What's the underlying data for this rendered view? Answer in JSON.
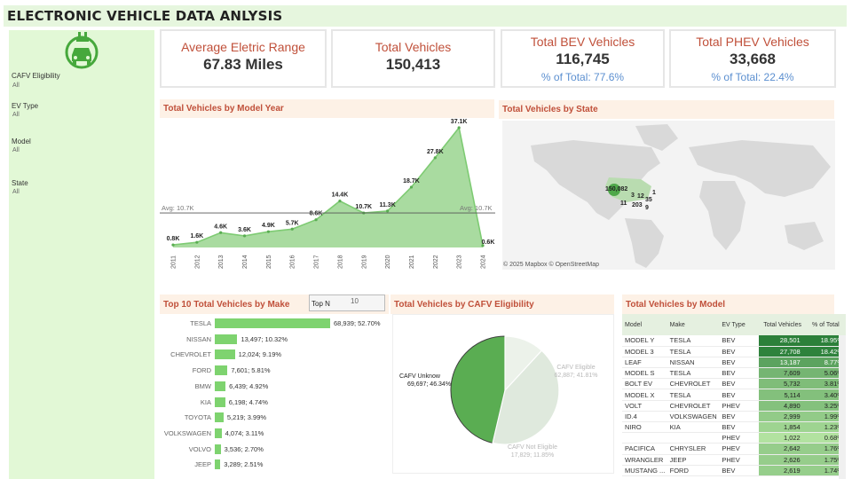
{
  "header": {
    "title": "ELECTRONIC VEHICLE DATA ANLYSIS"
  },
  "sidebar": {
    "icon": "ev-charger-car-icon",
    "filters": [
      {
        "label": "CAFV Eligibility",
        "value": "All"
      },
      {
        "label": "EV Type",
        "value": "All"
      },
      {
        "label": "Model",
        "value": "All"
      },
      {
        "label": "State",
        "value": "All"
      }
    ]
  },
  "kpis": {
    "avg_range": {
      "title": "Average Eletric Range",
      "value": "67.83 Miles"
    },
    "total": {
      "title": "Total Vehicles",
      "value": "150,413"
    },
    "bev": {
      "title": "Total BEV Vehicles",
      "value": "116,745",
      "pct": "% of Total: 77.6%"
    },
    "phev": {
      "title": "Total PHEV Vehicles",
      "value": "33,668",
      "pct": "% of Total: 22.4%"
    }
  },
  "year_chart": {
    "panel_title": "Total Vehicles by Model Year",
    "avg_label_left": "Avg: 10.7K",
    "avg_label_right": "Avg: 10.7K",
    "chart_data": {
      "type": "area",
      "x": [
        "2011",
        "2012",
        "2013",
        "2014",
        "2015",
        "2016",
        "2017",
        "2018",
        "2019",
        "2020",
        "2021",
        "2022",
        "2023",
        "2024"
      ],
      "values": [
        0.8,
        1.6,
        4.6,
        3.6,
        4.9,
        5.7,
        8.6,
        14.4,
        10.7,
        11.3,
        18.7,
        27.8,
        37.1,
        0.6
      ],
      "labels": [
        "0.8K",
        "1.6K",
        "4.6K",
        "3.6K",
        "4.9K",
        "5.7K",
        "8.6K",
        "14.4K",
        "10.7K",
        "11.3K",
        "18.7K",
        "27.8K",
        "37.1K",
        "0.6K"
      ],
      "average": 10.7,
      "color": "#7ecb73"
    }
  },
  "state_map": {
    "panel_title": "Total Vehicles by State",
    "credit": "© 2025 Mapbox © OpenStreetMap",
    "labels": [
      "150,082",
      "3",
      "12",
      "35",
      "1",
      "11",
      "203",
      "9"
    ]
  },
  "make_chart": {
    "panel_title": "Top 10 Total Vehicles by Make",
    "topn_label": "Top N",
    "topn_value": "10",
    "chart_data": {
      "type": "bar",
      "categories": [
        "TESLA",
        "NISSAN",
        "CHEVROLET",
        "FORD",
        "BMW",
        "KIA",
        "TOYOTA",
        "VOLKSWAGEN",
        "VOLVO",
        "JEEP"
      ],
      "values": [
        68939,
        13497,
        12024,
        7601,
        6439,
        6198,
        5219,
        4074,
        3536,
        3289
      ],
      "labels": [
        "68,939; 52.70%",
        "13,497; 10.32%",
        "12,024; 9.19%",
        "7,601; 5.81%",
        "6,439; 4.92%",
        "6,198; 4.74%",
        "5,219; 3.99%",
        "4,074; 3.11%",
        "3,536; 2.70%",
        "3,289; 2.51%"
      ],
      "color": "#7ed36f"
    }
  },
  "cafv_chart": {
    "panel_title": "Total Vehicles by  CAFV Eligibility",
    "chart_data": {
      "type": "pie",
      "slices": [
        {
          "name": "CAFV Unknow",
          "value": 69697,
          "label": "69,697; 46.34%",
          "color": "#5aad52"
        },
        {
          "name": "CAFV Eligible",
          "value": 62887,
          "label": "62,887; 41.81%",
          "color": "#dfe9dd"
        },
        {
          "name": "CAFV Not Eligible",
          "value": 17829,
          "label": "17,829; 11.85%",
          "color": "#ecf2ea"
        }
      ]
    }
  },
  "model_table": {
    "panel_title": "Total Vehicles by Model",
    "headers": [
      "Model",
      "Make",
      "EV Type",
      "Total Vehicles",
      "% of Total"
    ],
    "rows": [
      [
        "MODEL Y",
        "TESLA",
        "BEV",
        "28,501",
        "18.95%"
      ],
      [
        "MODEL 3",
        "TESLA",
        "BEV",
        "27,708",
        "18.42%"
      ],
      [
        "LEAF",
        "NISSAN",
        "BEV",
        "13,187",
        "8.77%"
      ],
      [
        "MODEL S",
        "TESLA",
        "BEV",
        "7,609",
        "5.06%"
      ],
      [
        "BOLT EV",
        "CHEVROLET",
        "BEV",
        "5,732",
        "3.81%"
      ],
      [
        "MODEL X",
        "TESLA",
        "BEV",
        "5,114",
        "3.40%"
      ],
      [
        "VOLT",
        "CHEVROLET",
        "PHEV",
        "4,890",
        "3.25%"
      ],
      [
        "ID.4",
        "VOLKSWAGEN",
        "BEV",
        "2,999",
        "1.99%"
      ],
      [
        "NIRO",
        "KIA",
        "BEV",
        "1,854",
        "1.23%"
      ],
      [
        "",
        "",
        "PHEV",
        "1,022",
        "0.68%"
      ],
      [
        "PACIFICA",
        "CHRYSLER",
        "PHEV",
        "2,642",
        "1.76%"
      ],
      [
        "WRANGLER",
        "JEEP",
        "PHEV",
        "2,626",
        "1.75%"
      ],
      [
        "MUSTANG ...",
        "FORD",
        "BEV",
        "2,619",
        "1.74%"
      ]
    ]
  }
}
